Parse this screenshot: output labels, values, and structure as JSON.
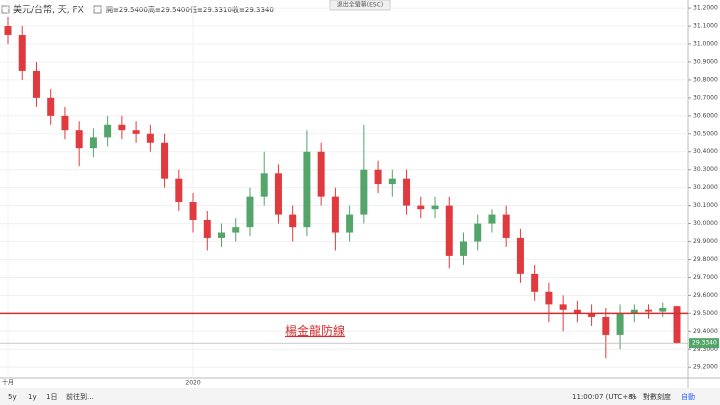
{
  "chart_data": {
    "type": "candlestick",
    "symbol": "美元/台幣, 天, FX",
    "ohlc_header": [
      "開≡29.5400",
      "高≡29.5400",
      "低≡29.3310",
      "收≡29.3340"
    ],
    "exit_button": "退出全螢幕(ESC)",
    "categories": [
      "十月",
      null,
      null,
      null,
      null,
      null,
      null,
      null,
      null,
      null,
      null,
      null,
      null,
      "2020",
      null,
      null,
      null,
      null,
      null,
      null,
      null,
      null,
      null,
      null,
      null,
      null,
      null,
      null,
      null,
      null,
      null,
      null,
      null,
      null,
      null,
      null,
      null,
      null,
      null,
      null,
      null,
      null,
      null,
      null,
      null,
      null,
      null,
      null
    ],
    "open": [
      31.1,
      31.05,
      30.85,
      30.7,
      30.6,
      30.52,
      30.42,
      30.48,
      30.55,
      30.52,
      30.5,
      30.45,
      30.25,
      30.12,
      30.02,
      29.92,
      29.95,
      29.98,
      30.15,
      30.28,
      30.05,
      29.98,
      30.4,
      30.15,
      29.95,
      30.05,
      30.3,
      30.22,
      30.25,
      30.1,
      30.08,
      30.1,
      29.82,
      29.9,
      30.0,
      30.05,
      29.92,
      29.72,
      29.62,
      29.55,
      29.52,
      29.5,
      29.48,
      29.38,
      29.5,
      29.52,
      29.51,
      29.54
    ],
    "high": [
      31.15,
      31.1,
      30.9,
      30.75,
      30.65,
      30.57,
      30.53,
      30.6,
      30.6,
      30.57,
      30.55,
      30.5,
      30.3,
      30.17,
      30.07,
      30.0,
      30.03,
      30.2,
      30.4,
      30.33,
      30.1,
      30.52,
      30.45,
      30.2,
      30.1,
      30.55,
      30.35,
      30.3,
      30.3,
      30.15,
      30.15,
      30.15,
      29.95,
      30.05,
      30.08,
      30.1,
      29.97,
      29.77,
      29.67,
      29.6,
      29.57,
      29.55,
      29.53,
      29.55,
      29.55,
      29.55,
      29.56,
      29.54
    ],
    "low": [
      31.0,
      30.8,
      30.65,
      30.55,
      30.47,
      30.32,
      30.37,
      30.43,
      30.47,
      30.45,
      30.4,
      30.2,
      30.07,
      29.95,
      29.85,
      29.87,
      29.9,
      29.93,
      30.1,
      30.0,
      29.9,
      29.93,
      30.1,
      29.85,
      29.9,
      30.0,
      30.17,
      30.15,
      30.05,
      30.03,
      30.03,
      29.75,
      29.77,
      29.85,
      29.95,
      29.87,
      29.67,
      29.57,
      29.45,
      29.4,
      29.45,
      29.43,
      29.25,
      29.3,
      29.45,
      29.47,
      29.48,
      29.331
    ],
    "close": [
      31.05,
      30.85,
      30.7,
      30.6,
      30.52,
      30.42,
      30.48,
      30.55,
      30.52,
      30.5,
      30.45,
      30.25,
      30.12,
      30.02,
      29.92,
      29.95,
      29.98,
      30.15,
      30.28,
      30.05,
      29.98,
      30.4,
      30.15,
      29.95,
      30.05,
      30.3,
      30.22,
      30.25,
      30.1,
      30.08,
      30.1,
      29.82,
      29.9,
      30.0,
      30.05,
      29.92,
      29.72,
      29.62,
      29.55,
      29.52,
      29.5,
      29.48,
      29.38,
      29.5,
      29.52,
      29.51,
      29.53,
      29.334
    ],
    "up_color": "#53a56a",
    "down_color": "#e03a3e",
    "ylim": [
      29.14,
      31.245
    ],
    "yticks": [
      {
        "value": 29.2,
        "label": "29.2000"
      },
      {
        "value": 29.3,
        "label": "29.3000"
      },
      {
        "value": 29.4,
        "label": "29.4000"
      },
      {
        "value": 29.5,
        "label": "29.5000"
      },
      {
        "value": 29.6,
        "label": "29.6000"
      },
      {
        "value": 29.7,
        "label": "29.7000"
      },
      {
        "value": 29.8,
        "label": "29.8000"
      },
      {
        "value": 29.9,
        "label": "29.9000"
      },
      {
        "value": 30.0,
        "label": "30.0000"
      },
      {
        "value": 30.1,
        "label": "30.1000"
      },
      {
        "value": 30.2,
        "label": "30.2000"
      },
      {
        "value": 30.3,
        "label": "30.3000"
      },
      {
        "value": 30.4,
        "label": "30.4000"
      },
      {
        "value": 30.5,
        "label": "30.5000"
      },
      {
        "value": 30.6,
        "label": "30.6000"
      },
      {
        "value": 30.7,
        "label": "30.7000"
      },
      {
        "value": 30.8,
        "label": "30.8000"
      },
      {
        "value": 30.9,
        "label": "30.9000"
      },
      {
        "value": 31.0,
        "label": "31.0000"
      },
      {
        "value": 31.1,
        "label": "31.1000"
      },
      {
        "value": 31.2,
        "label": "31.2000"
      }
    ],
    "hline": {
      "value": 29.5,
      "color": "#d32f2f"
    },
    "annotation": "楊金龍防線",
    "last_price": {
      "value": 29.334,
      "label": "29.3340",
      "color": "#53a56a"
    },
    "toolbar": [
      "5y",
      "1y",
      "1日",
      "前往到..."
    ],
    "clock": "11:00:07 (UTC+8)",
    "scale_options": [
      "%",
      "對數刻度",
      "自動"
    ]
  }
}
